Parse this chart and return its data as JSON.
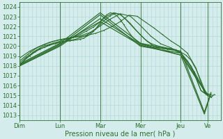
{
  "xlabel": "Pression niveau de la mer( hPa )",
  "ylim": [
    1012.5,
    1024.5
  ],
  "yticks": [
    1013,
    1014,
    1015,
    1016,
    1017,
    1018,
    1019,
    1020,
    1021,
    1022,
    1023,
    1024
  ],
  "bg_color": "#d4ecec",
  "grid_color": "#b0d4d4",
  "line_color": "#2d6e2d",
  "days": [
    "Dim",
    "Lun",
    "Mar",
    "Mer",
    "Jeu",
    "Ve"
  ],
  "day_positions": [
    0,
    0.2,
    0.4,
    0.6,
    0.8,
    0.933
  ],
  "xlim": [
    0,
    1.0
  ],
  "series": [
    {
      "x": [
        0.0,
        0.017,
        0.033,
        0.05,
        0.067,
        0.083,
        0.1,
        0.117,
        0.133,
        0.15,
        0.167,
        0.183,
        0.2,
        0.217,
        0.233,
        0.25,
        0.267,
        0.283,
        0.3,
        0.317,
        0.333,
        0.35,
        0.367,
        0.383,
        0.4,
        0.417,
        0.433,
        0.45,
        0.467,
        0.483,
        0.5,
        0.517,
        0.533,
        0.55,
        0.567,
        0.583,
        0.6,
        0.617,
        0.633,
        0.65,
        0.667,
        0.683,
        0.7,
        0.717,
        0.733,
        0.75,
        0.767,
        0.783,
        0.8,
        0.817,
        0.833,
        0.85,
        0.867,
        0.883,
        0.9,
        0.917,
        0.933,
        0.95,
        0.967
      ],
      "y": [
        1018.0,
        1018.4,
        1018.8,
        1019.1,
        1019.4,
        1019.6,
        1019.8,
        1020.0,
        1020.1,
        1020.2,
        1020.3,
        1020.35,
        1020.4,
        1020.45,
        1020.5,
        1020.55,
        1020.6,
        1020.65,
        1020.7,
        1020.8,
        1021.0,
        1021.2,
        1021.5,
        1021.9,
        1022.4,
        1022.9,
        1023.2,
        1023.4,
        1023.3,
        1023.1,
        1022.7,
        1022.2,
        1021.7,
        1021.2,
        1020.8,
        1020.5,
        1020.3,
        1020.2,
        1020.1,
        1020.0,
        1019.9,
        1019.85,
        1019.8,
        1019.75,
        1019.7,
        1019.65,
        1019.6,
        1019.5,
        1019.3,
        1018.9,
        1018.5,
        1018.0,
        1017.4,
        1016.8,
        1016.1,
        1015.4,
        1015.0,
        1014.8,
        1015.1
      ],
      "marker": true,
      "linewidth": 0.8
    },
    {
      "x": [
        0.0,
        0.025,
        0.05,
        0.075,
        0.1,
        0.125,
        0.15,
        0.175,
        0.2,
        0.225,
        0.25,
        0.275,
        0.3,
        0.325,
        0.35,
        0.375,
        0.4,
        0.425,
        0.45,
        0.475,
        0.5,
        0.525,
        0.55,
        0.575,
        0.6,
        0.625,
        0.65,
        0.675,
        0.7,
        0.725,
        0.75,
        0.775,
        0.8,
        0.825,
        0.85,
        0.875,
        0.9,
        0.925,
        0.95
      ],
      "y": [
        1018.1,
        1018.6,
        1019.0,
        1019.4,
        1019.7,
        1019.9,
        1020.1,
        1020.25,
        1020.4,
        1020.5,
        1020.6,
        1020.7,
        1020.85,
        1021.05,
        1021.35,
        1021.7,
        1022.2,
        1022.7,
        1023.1,
        1023.35,
        1023.2,
        1022.8,
        1022.3,
        1021.7,
        1021.15,
        1020.65,
        1020.3,
        1020.1,
        1019.95,
        1019.85,
        1019.75,
        1019.65,
        1019.4,
        1019.1,
        1018.6,
        1017.7,
        1016.5,
        1015.2,
        1014.9
      ],
      "marker": true,
      "linewidth": 0.8
    },
    {
      "x": [
        0.0,
        0.033,
        0.067,
        0.1,
        0.133,
        0.167,
        0.2,
        0.233,
        0.267,
        0.3,
        0.333,
        0.367,
        0.4,
        0.433,
        0.467,
        0.5,
        0.533,
        0.567,
        0.6,
        0.633,
        0.667,
        0.7,
        0.733,
        0.767,
        0.8,
        0.833,
        0.867,
        0.9,
        0.933
      ],
      "y": [
        1018.3,
        1018.9,
        1019.3,
        1019.7,
        1020.0,
        1020.3,
        1020.5,
        1020.7,
        1020.9,
        1021.2,
        1021.55,
        1021.95,
        1022.5,
        1023.05,
        1023.4,
        1023.25,
        1022.6,
        1021.85,
        1021.15,
        1020.5,
        1020.0,
        1019.8,
        1019.7,
        1019.6,
        1019.3,
        1018.5,
        1017.3,
        1015.5,
        1015.0
      ],
      "marker": true,
      "linewidth": 0.8
    },
    {
      "x": [
        0.0,
        0.042,
        0.083,
        0.125,
        0.167,
        0.208,
        0.25,
        0.292,
        0.333,
        0.375,
        0.417,
        0.458,
        0.5,
        0.542,
        0.583,
        0.625,
        0.667,
        0.708,
        0.75,
        0.792,
        0.833,
        0.875,
        0.917,
        0.958
      ],
      "y": [
        1018.5,
        1019.2,
        1019.8,
        1020.2,
        1020.5,
        1020.7,
        1020.85,
        1020.95,
        1021.1,
        1021.3,
        1021.6,
        1022.0,
        1022.5,
        1023.15,
        1023.05,
        1022.45,
        1021.85,
        1021.2,
        1020.55,
        1020.0,
        1019.3,
        1017.8,
        1015.3,
        1015.0
      ],
      "marker": true,
      "linewidth": 0.8
    },
    {
      "x": [
        0.0,
        0.05,
        0.1,
        0.15,
        0.2,
        0.25,
        0.3,
        0.35,
        0.4,
        0.45,
        0.5,
        0.55,
        0.6,
        0.65,
        0.7,
        0.75,
        0.8,
        0.85,
        0.9,
        0.933
      ],
      "y": [
        1018.8,
        1019.5,
        1020.0,
        1020.4,
        1020.65,
        1020.85,
        1021.05,
        1021.4,
        1022.05,
        1022.75,
        1023.3,
        1023.05,
        1022.1,
        1021.05,
        1020.25,
        1019.85,
        1019.3,
        1018.0,
        1015.5,
        1015.0
      ],
      "marker": true,
      "linewidth": 0.8
    },
    {
      "x": [
        0.0,
        0.2,
        0.4,
        0.6,
        0.8,
        0.933
      ],
      "y": [
        1018.1,
        1020.2,
        1022.5,
        1020.1,
        1019.1,
        1015.0
      ],
      "marker": false,
      "linewidth": 0.9
    },
    {
      "x": [
        0.0,
        0.2,
        0.4,
        0.6,
        0.8,
        0.933
      ],
      "y": [
        1018.0,
        1020.1,
        1023.2,
        1020.0,
        1019.3,
        1015.1
      ],
      "marker": false,
      "linewidth": 0.9
    },
    {
      "x": [
        0.0,
        0.2,
        0.4,
        0.6,
        0.8,
        0.917,
        0.95
      ],
      "y": [
        1018.0,
        1020.0,
        1022.8,
        1020.2,
        1019.1,
        1013.1,
        1015.2
      ],
      "marker": false,
      "linewidth": 0.9
    },
    {
      "x": [
        0.0,
        0.2,
        0.4,
        0.6,
        0.8,
        0.917,
        0.95
      ],
      "y": [
        1018.2,
        1020.3,
        1023.4,
        1020.3,
        1019.5,
        1013.3,
        1015.3
      ],
      "marker": false,
      "linewidth": 0.9
    }
  ],
  "xlabel_fontsize": 7,
  "tick_fontsize": 6
}
